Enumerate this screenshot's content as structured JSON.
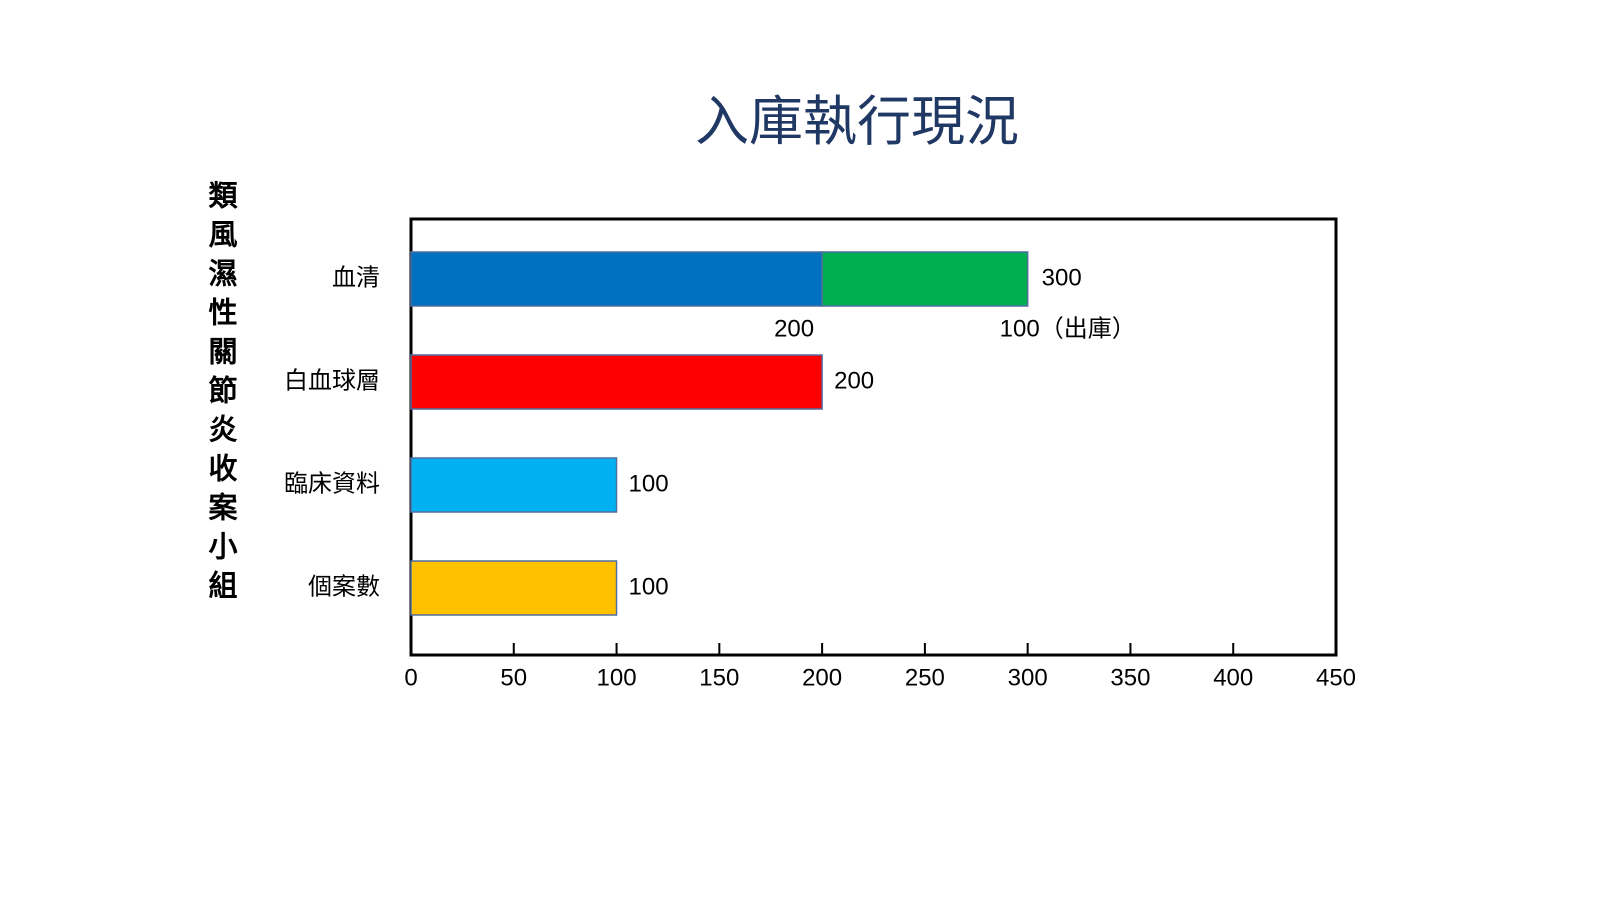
{
  "chart_data": {
    "type": "bar",
    "orientation": "horizontal",
    "stacked": true,
    "title": "入庫執行現況",
    "y_label": "類風濕性關節炎收案小組",
    "categories": [
      "血清",
      "白血球層",
      "臨床資料",
      "個案數"
    ],
    "series": [
      {
        "colors": [
          "#0070c0",
          "#ff0000",
          "#00b0f0",
          "#ffc000"
        ],
        "values": [
          200,
          200,
          100,
          100
        ]
      },
      {
        "color": "#00b050",
        "values": [
          100,
          null,
          null,
          null
        ],
        "value_labels": [
          "100（出庫）",
          null,
          null,
          null
        ]
      }
    ],
    "totals": [
      300,
      null,
      null,
      null
    ],
    "xlim": [
      0,
      450
    ],
    "xticks": [
      0,
      50,
      100,
      150,
      200,
      250,
      300,
      350,
      400,
      450
    ],
    "grid": false
  }
}
